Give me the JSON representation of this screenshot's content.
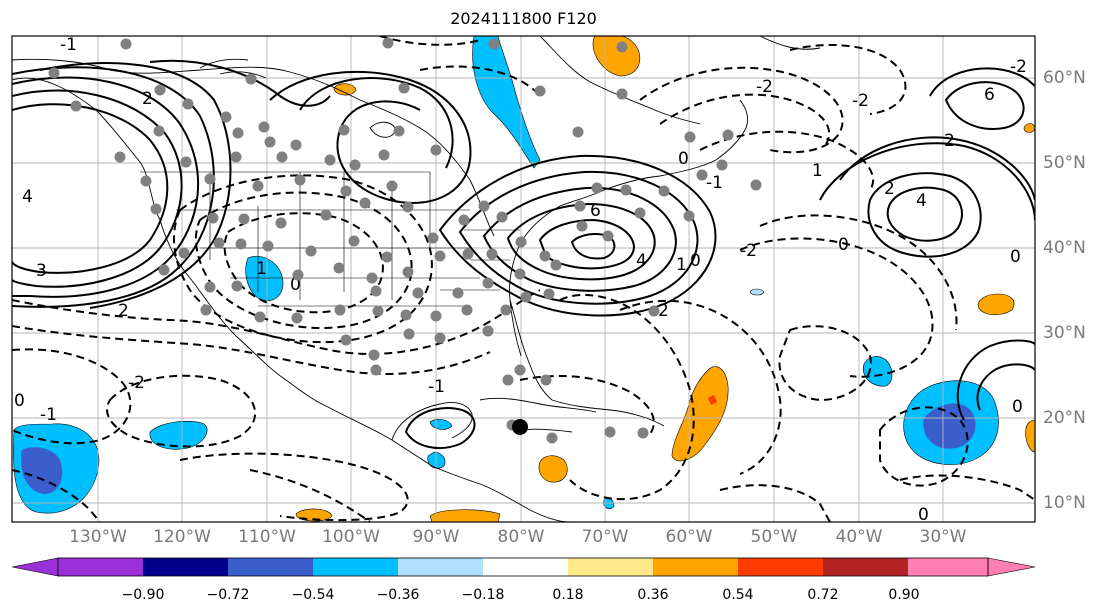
{
  "title": "2024111800 F120",
  "map": {
    "lon_labels": [
      "130°W",
      "120°W",
      "110°W",
      "100°W",
      "90°W",
      "80°W",
      "70°W",
      "60°W",
      "50°W",
      "40°W",
      "30°W"
    ],
    "lat_labels": [
      "60°N",
      "50°N",
      "40°N",
      "30°N",
      "20°N",
      "10°N"
    ],
    "contour_labels": [
      "2",
      "4",
      "3",
      "2",
      "0",
      "1",
      "-1",
      "-2",
      "0",
      "6",
      "4",
      "2",
      "0",
      "-2",
      "2",
      "6",
      "4",
      "2",
      "0",
      "-2",
      "0",
      "-1",
      "1",
      "-1",
      "-2",
      "0",
      "-2",
      "0",
      "-1",
      "1",
      "0"
    ],
    "storm_marker": "tropical-cyclone-symbol"
  },
  "colorbar": {
    "ticks": [
      "−0.90",
      "−0.72",
      "−0.54",
      "−0.36",
      "−0.18",
      "0.18",
      "0.36",
      "0.54",
      "0.72",
      "0.90"
    ],
    "colors": [
      "#9b30d9",
      "#00008b",
      "#3a5fcd",
      "#00bfff",
      "#b0e2ff",
      "#ffffff",
      "#ffe88a",
      "#ffa500",
      "#ff3c00",
      "#b22222",
      "#ff80b0"
    ]
  }
}
